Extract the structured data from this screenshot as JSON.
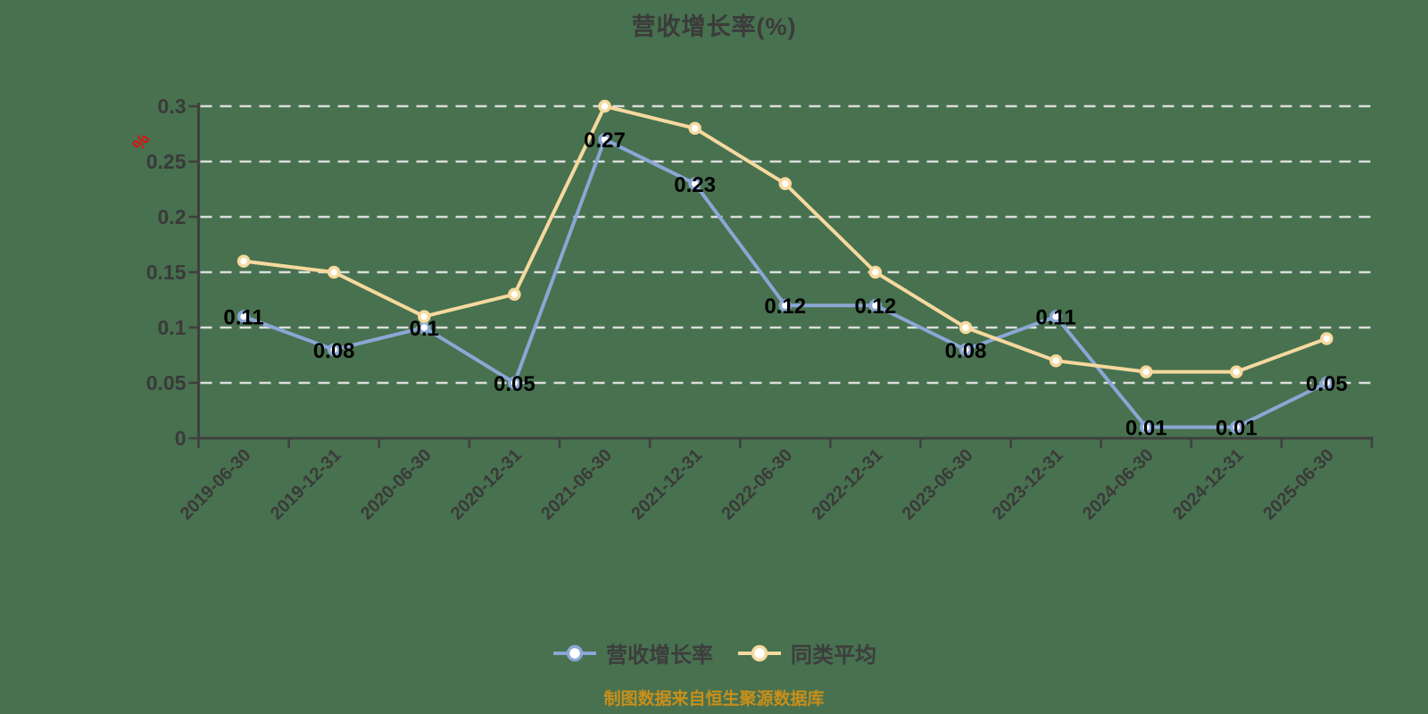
{
  "page": {
    "background_color": "#48714f"
  },
  "chart_data": {
    "type": "line",
    "title": "营收增长率(%)",
    "x_categories": [
      "2019-06-30",
      "2019-12-31",
      "2020-06-30",
      "2020-12-31",
      "2021-06-30",
      "2021-12-31",
      "2022-06-30",
      "2022-12-31",
      "2023-06-30",
      "2023-12-31",
      "2024-06-30",
      "2024-12-31",
      "2025-06-30"
    ],
    "series": [
      {
        "name": "营收增长率",
        "color": "#8aa7d5",
        "values": [
          0.11,
          0.08,
          0.1,
          0.05,
          0.27,
          0.23,
          0.12,
          0.12,
          0.08,
          0.11,
          0.01,
          0.01,
          0.05
        ],
        "show_point_labels": true
      },
      {
        "name": "同类平均",
        "color": "#f6d99e",
        "values": [
          0.16,
          0.15,
          0.11,
          0.13,
          0.3,
          0.28,
          0.23,
          0.15,
          0.1,
          0.07,
          0.06,
          0.06,
          0.09
        ],
        "show_point_labels": false
      }
    ],
    "ylim": [
      0,
      0.3
    ],
    "yticks": [
      0,
      0.05,
      0.1,
      0.15,
      0.2,
      0.25,
      0.3
    ],
    "ytick_labels": [
      "0",
      "0.05",
      "0.1",
      "0.15",
      "0.2",
      "0.25",
      "0.3"
    ],
    "y_unit_label": "%",
    "y_unit_color": "#dd1111",
    "grid": "horizontal dashed",
    "legend_position": "bottom",
    "marker": "circle"
  },
  "footer": {
    "text": "制图数据来自恒生聚源数据库",
    "color": "#c98f1a"
  }
}
